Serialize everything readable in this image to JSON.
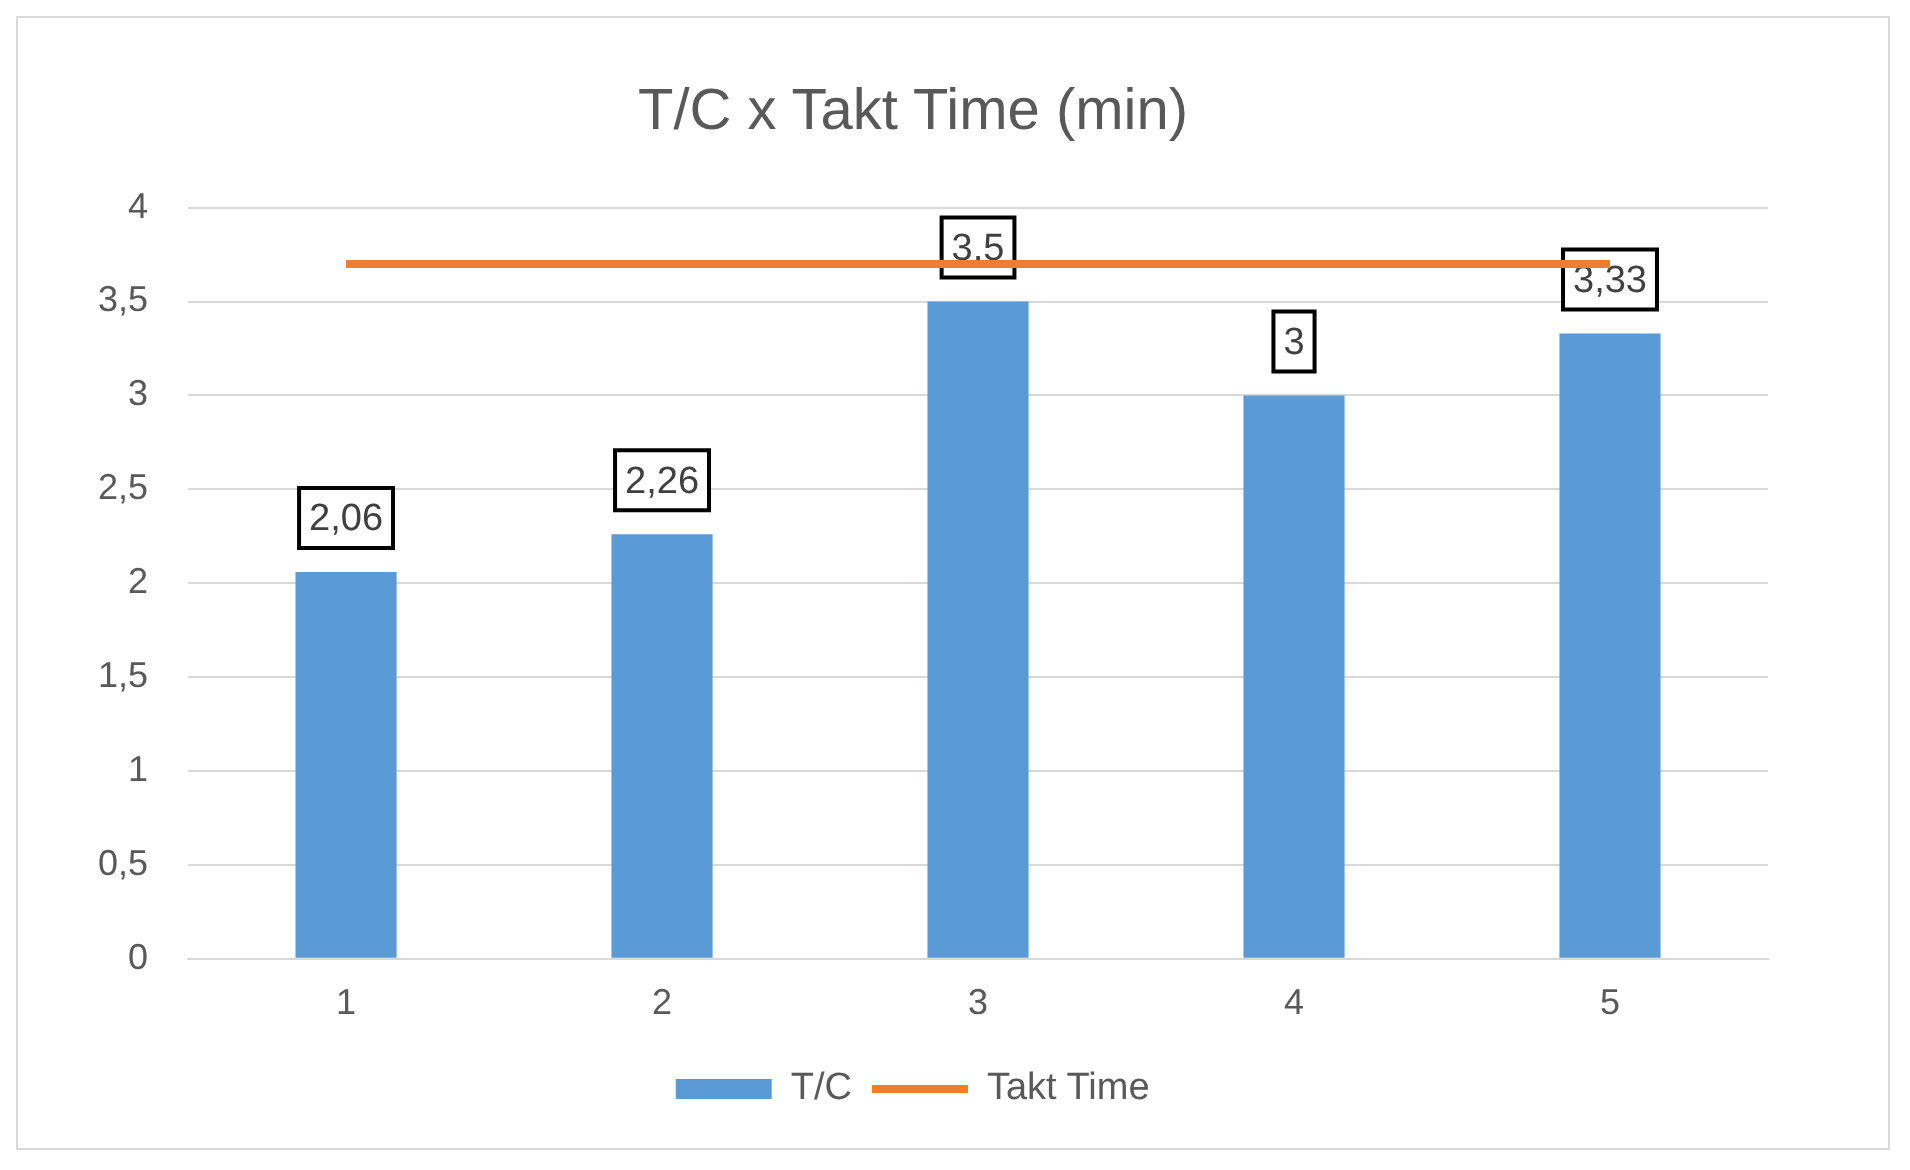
{
  "chart_data": {
    "type": "bar",
    "title": "T/C x Takt Time (min)",
    "categories": [
      "1",
      "2",
      "3",
      "4",
      "5"
    ],
    "series": [
      {
        "name": "T/C",
        "color": "#5b9bd5",
        "values": [
          2.06,
          2.26,
          3.5,
          3,
          3.33
        ],
        "value_labels": [
          "2,06",
          "2,26",
          "3,5",
          "3",
          "3,33"
        ]
      },
      {
        "name": "Takt Time",
        "type": "line",
        "color": "#ed7d31",
        "values": [
          3.7,
          3.7,
          3.7,
          3.7,
          3.7
        ],
        "marker": "none"
      }
    ],
    "ylim": [
      0,
      4
    ],
    "yticks": [
      0,
      {
        "value": 0.5,
        "label": "0,5"
      },
      1,
      {
        "value": 1.5,
        "label": "1,5"
      },
      2,
      {
        "value": 2.5,
        "label": "2,5"
      },
      3,
      {
        "value": 3.5,
        "label": "3,5"
      },
      4
    ],
    "grid": "y",
    "legend": "bottom"
  }
}
